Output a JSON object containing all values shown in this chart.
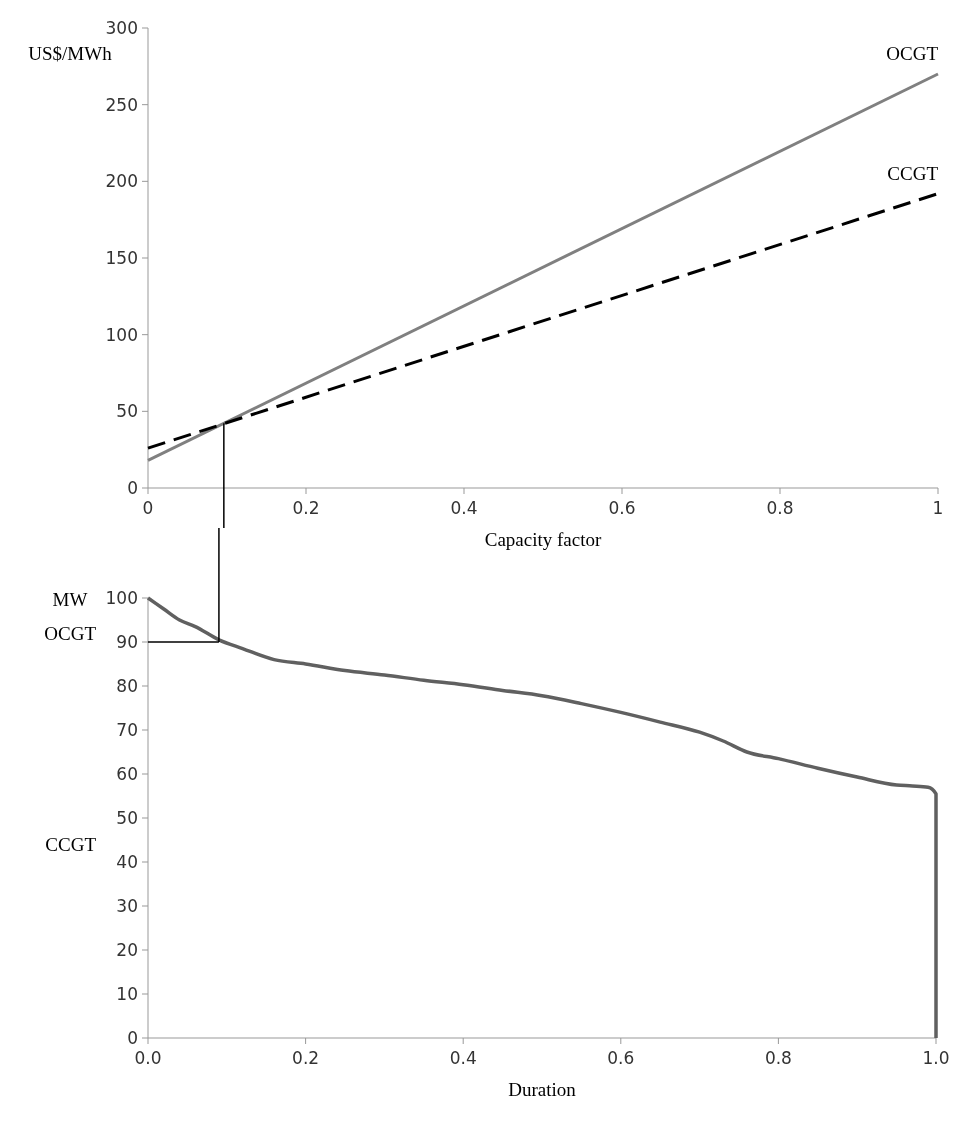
{
  "chart_data": [
    {
      "type": "line",
      "xlabel": "Capacity factor",
      "ylabel": "US$/MWh",
      "xlim": [
        0,
        1
      ],
      "xticks": [
        0,
        0.2,
        0.4,
        0.6,
        0.8,
        1
      ],
      "ylim": [
        0,
        300
      ],
      "yticks": [
        0,
        50,
        100,
        150,
        200,
        250,
        300
      ],
      "grid": false,
      "marker": "none",
      "series": [
        {
          "name": "OCGT",
          "color": "#808080",
          "line_style": "solid",
          "x": [
            0,
            1
          ],
          "values": [
            18,
            270
          ]
        },
        {
          "name": "CCGT",
          "color": "#000000",
          "line_style": "dashed",
          "x": [
            0,
            1
          ],
          "values": [
            26,
            192
          ]
        }
      ],
      "ref_lines": [
        {
          "axis": "x",
          "value": 0.096,
          "color": "#000000"
        }
      ]
    },
    {
      "type": "line",
      "xlabel": "Duration",
      "ylabel": "MW",
      "xlim": [
        0,
        1
      ],
      "xticks": [
        {
          "value": 0,
          "label": "0.0"
        },
        {
          "value": 0.2,
          "label": "0.2"
        },
        {
          "value": 0.4,
          "label": "0.4"
        },
        {
          "value": 0.6,
          "label": "0.6"
        },
        {
          "value": 0.8,
          "label": "0.8"
        },
        {
          "value": 1,
          "label": "1.0"
        }
      ],
      "ylim": [
        0,
        100
      ],
      "yticks": [
        0,
        10,
        20,
        30,
        40,
        50,
        60,
        70,
        80,
        90,
        100
      ],
      "grid": false,
      "marker": "none",
      "series": [
        {
          "color": "#606060",
          "x": [
            0,
            0.02,
            0.04,
            0.06,
            0.09,
            0.12,
            0.16,
            0.2,
            0.25,
            0.3,
            0.35,
            0.4,
            0.45,
            0.5,
            0.55,
            0.6,
            0.65,
            0.7,
            0.73,
            0.76,
            0.8,
            0.85,
            0.9,
            0.95,
            0.97,
            0.99,
            1,
            1
          ],
          "values": [
            100,
            97.5,
            95,
            93.5,
            90.5,
            88.5,
            86,
            85,
            83.5,
            82.5,
            81.3,
            80.3,
            79,
            77.8,
            76,
            74,
            71.8,
            69.5,
            67.5,
            65,
            63.5,
            61.3,
            59.3,
            57.5,
            57.3,
            57,
            55.5,
            0
          ]
        }
      ],
      "ref_lines": [
        {
          "axis": "x",
          "value": 0.09,
          "color": "#000000"
        },
        {
          "axis": "y",
          "value": 90,
          "color": "#000000"
        }
      ],
      "annotations": [
        "OCGT",
        "CCGT"
      ]
    }
  ]
}
